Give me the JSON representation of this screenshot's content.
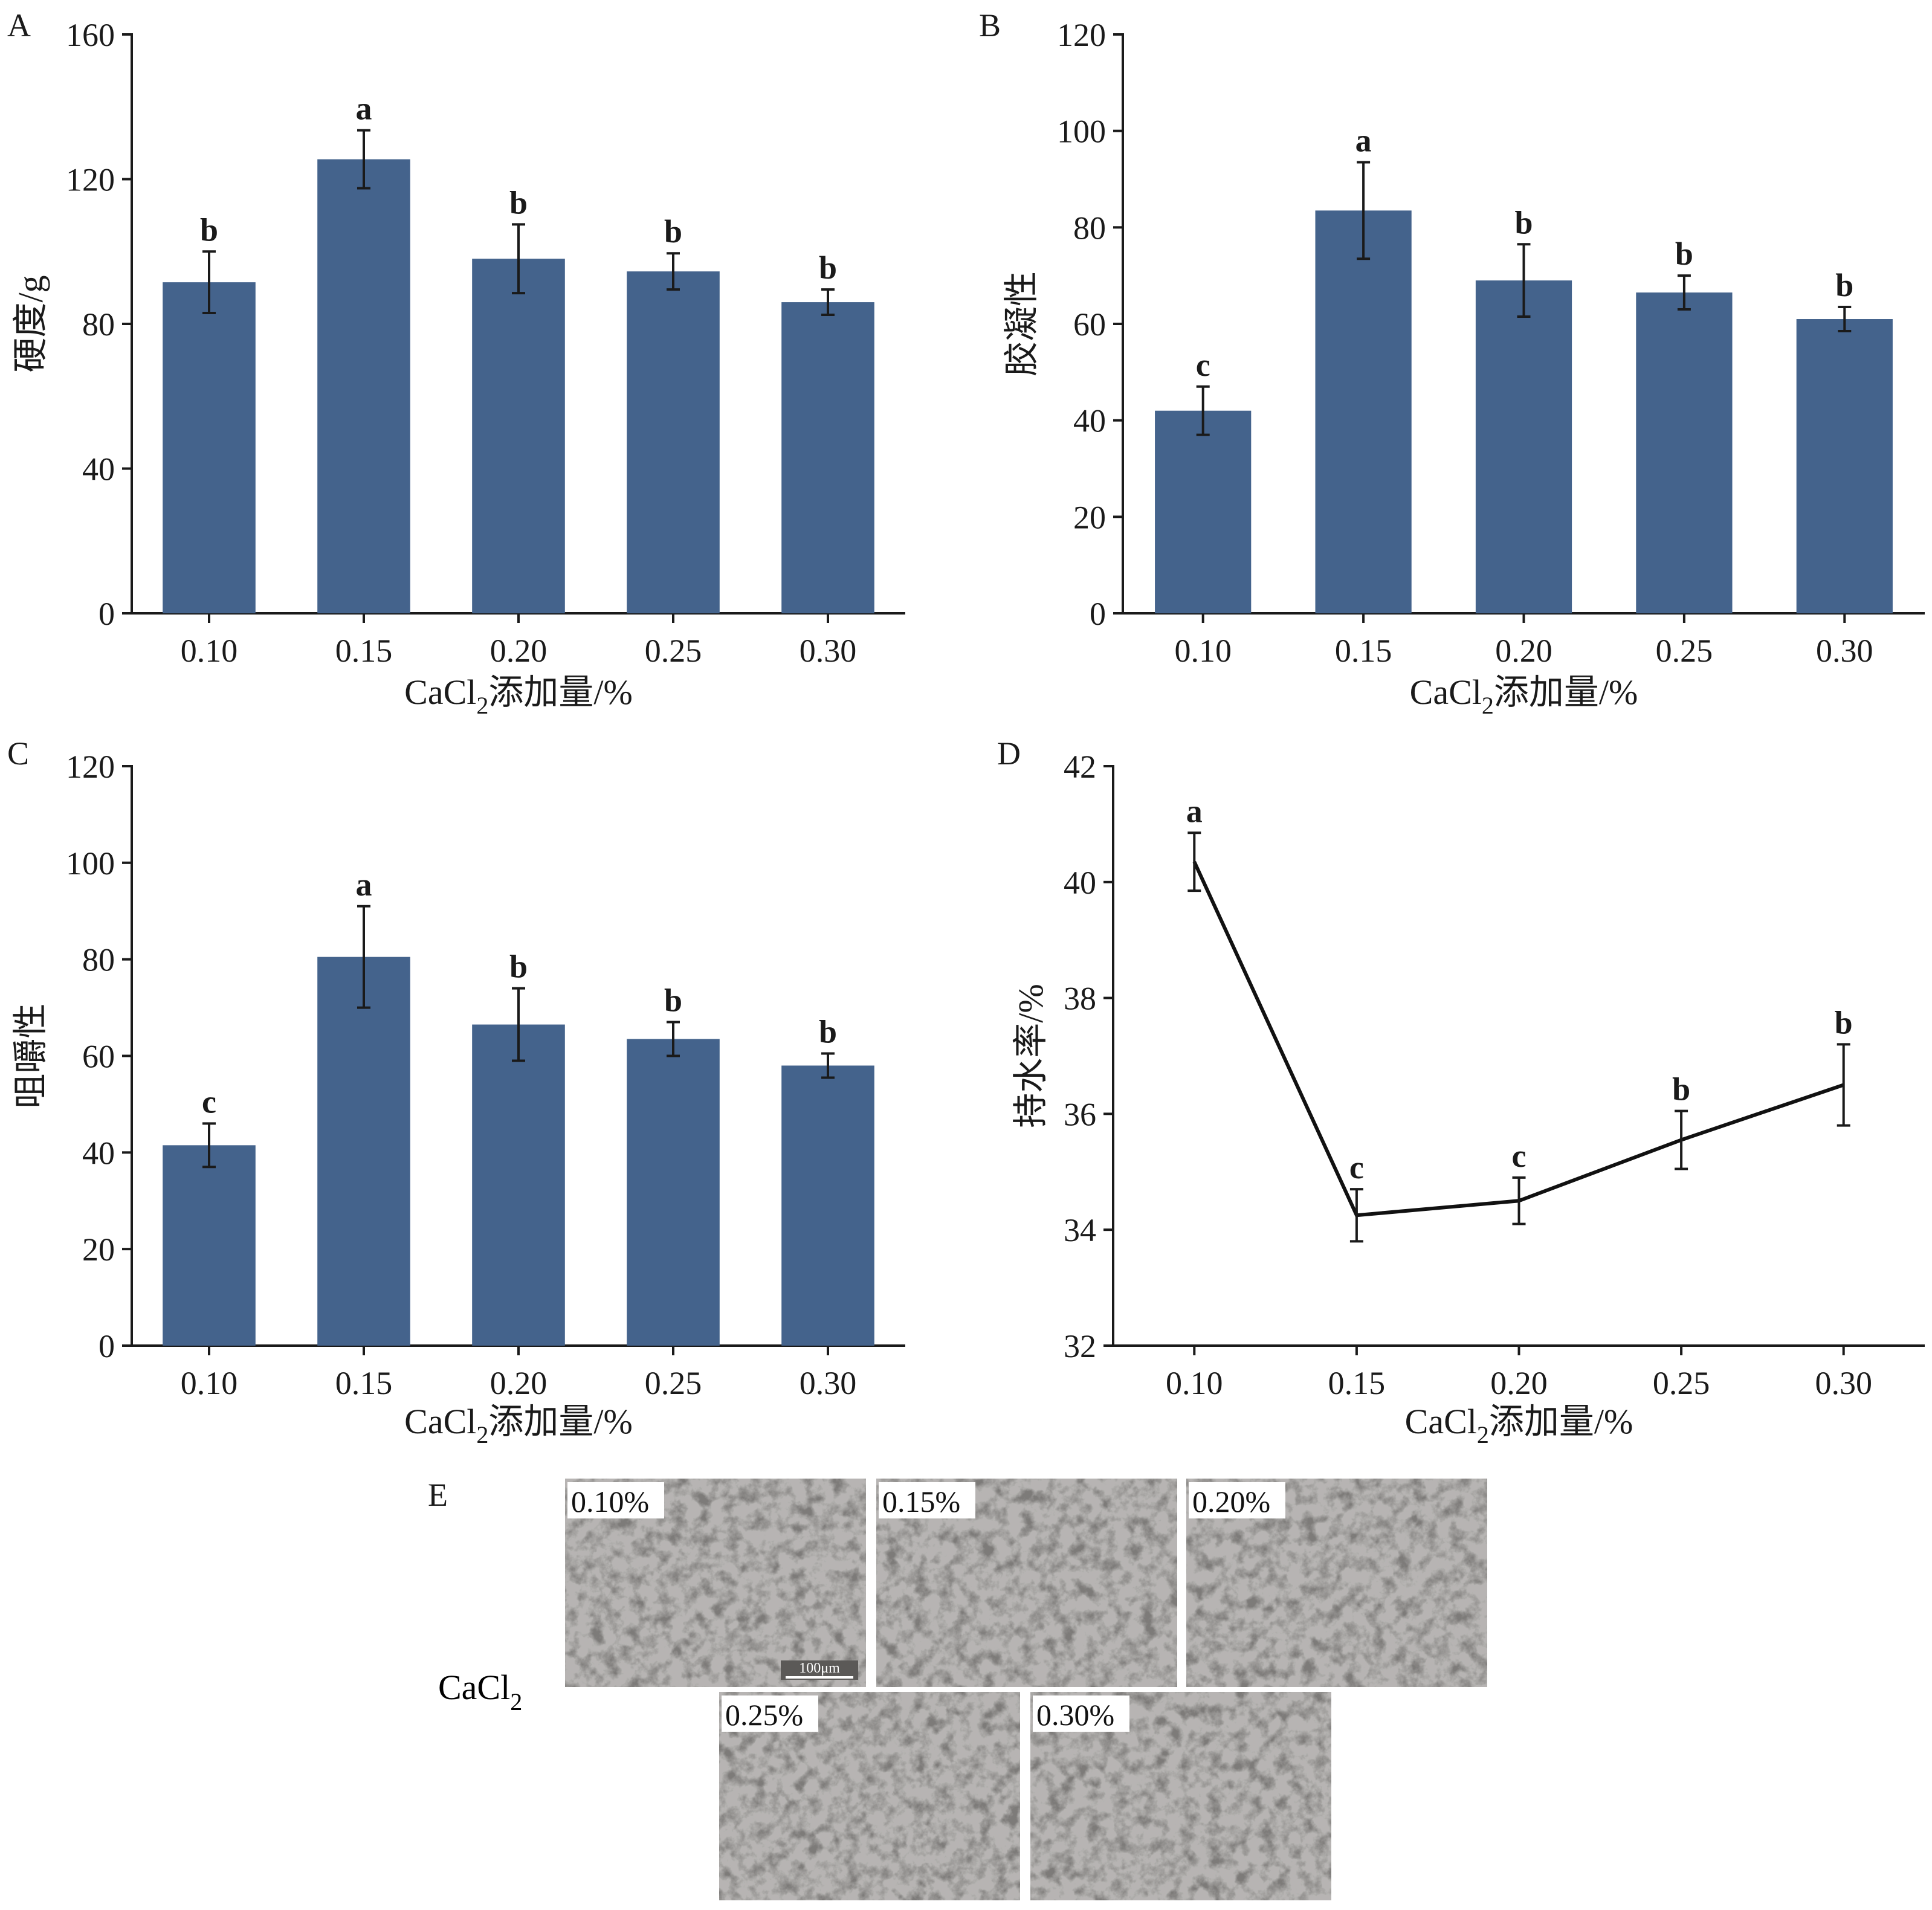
{
  "chart_data": [
    {
      "panel": "A",
      "type": "bar",
      "categories": [
        "0.10",
        "0.15",
        "0.20",
        "0.25",
        "0.30"
      ],
      "values": [
        91.5,
        125.5,
        98.0,
        94.5,
        86.0
      ],
      "errors": [
        8.5,
        8.0,
        9.5,
        5.0,
        3.5
      ],
      "letters": [
        "b",
        "a",
        "b",
        "b",
        "b"
      ],
      "ylim": [
        0,
        160
      ],
      "yticks": [
        0,
        40,
        80,
        120,
        160
      ],
      "ylabel": "硬度/g",
      "xlabel_pre": "CaCl",
      "xlabel_sub": "2",
      "xlabel_post": "添加量/%"
    },
    {
      "panel": "B",
      "type": "bar",
      "categories": [
        "0.10",
        "0.15",
        "0.20",
        "0.25",
        "0.30"
      ],
      "values": [
        42.0,
        83.5,
        69.0,
        66.5,
        61.0
      ],
      "errors": [
        5.0,
        10.0,
        7.5,
        3.5,
        2.5
      ],
      "letters": [
        "c",
        "a",
        "b",
        "b",
        "b"
      ],
      "ylim": [
        0,
        120
      ],
      "yticks": [
        0,
        20,
        40,
        60,
        80,
        100,
        120
      ],
      "ylabel": "胶凝性",
      "xlabel_pre": "CaCl",
      "xlabel_sub": "2",
      "xlabel_post": "添加量/%"
    },
    {
      "panel": "C",
      "type": "bar",
      "categories": [
        "0.10",
        "0.15",
        "0.20",
        "0.25",
        "0.30"
      ],
      "values": [
        41.5,
        80.5,
        66.5,
        63.5,
        58.0
      ],
      "errors": [
        4.5,
        10.5,
        7.5,
        3.5,
        2.5
      ],
      "letters": [
        "c",
        "a",
        "b",
        "b",
        "b"
      ],
      "ylim": [
        0,
        120
      ],
      "yticks": [
        0,
        20,
        40,
        60,
        80,
        100,
        120
      ],
      "ylabel": "咀嚼性",
      "xlabel_pre": "CaCl",
      "xlabel_sub": "2",
      "xlabel_post": "添加量/%"
    },
    {
      "panel": "D",
      "type": "line",
      "categories": [
        "0.10",
        "0.15",
        "0.20",
        "0.25",
        "0.30"
      ],
      "values": [
        40.35,
        34.25,
        34.5,
        35.55,
        36.5
      ],
      "errors": [
        0.5,
        0.45,
        0.4,
        0.5,
        0.7
      ],
      "letters": [
        "a",
        "c",
        "c",
        "b",
        "b"
      ],
      "ylim": [
        32,
        42
      ],
      "yticks": [
        32,
        34,
        36,
        38,
        40,
        42
      ],
      "ylabel": "持水率/%",
      "xlabel_pre": "CaCl",
      "xlabel_sub": "2",
      "xlabel_post": "添加量/%"
    }
  ],
  "micrographs": {
    "panel": "E",
    "row_label_pre": "CaCl",
    "row_label_sub": "2",
    "scale_bar": "100μm",
    "images": [
      {
        "label": "0.10%"
      },
      {
        "label": "0.15%"
      },
      {
        "label": "0.20%"
      },
      {
        "label": "0.25%"
      },
      {
        "label": "0.30%"
      }
    ]
  }
}
